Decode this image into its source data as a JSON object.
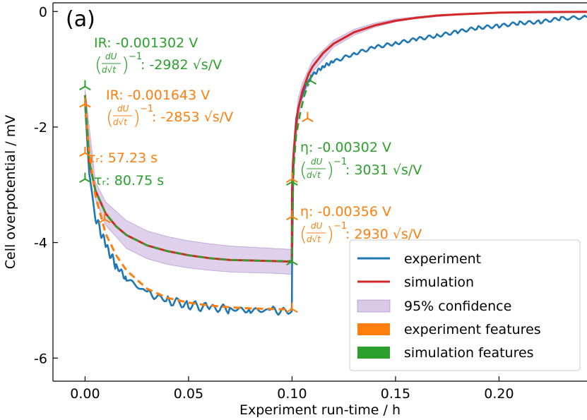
{
  "panel_label": "(a)",
  "colors": {
    "experiment": "#1f77b4",
    "simulation": "#d62728",
    "confidence": "#9467bd",
    "exp_features": "#ff7f0e",
    "sim_features": "#2ca02c"
  },
  "annotations": {
    "sim_ir": "IR: -0.001302 V",
    "sim_ir_slope": ": -2982 √s/V",
    "exp_ir": "IR: -0.001643 V",
    "exp_ir_slope": ": -2853 √s/V",
    "exp_tau": "τᵣ: 57.23 s",
    "sim_tau": "τᵣ: 80.75 s",
    "sim_eta": "η: -0.00302 V",
    "sim_eta_slope": ": 3031 √s/V",
    "exp_eta": "η: -0.00356 V",
    "exp_eta_slope": ": 2930 √s/V"
  },
  "chart_data": {
    "type": "line",
    "xlabel": "Experiment run-time  /  h",
    "ylabel": "Cell overpotential  /  mV",
    "xlim": [
      -0.0155,
      0.2425
    ],
    "ylim": [
      -6.4,
      0.15
    ],
    "xticks": [
      0.0,
      0.05,
      0.1,
      0.15,
      0.2
    ],
    "xtick_labels": [
      "0.00",
      "0.05",
      "0.10",
      "0.15",
      "0.20"
    ],
    "yticks": [
      0,
      -2,
      -4,
      -6
    ],
    "ytick_labels": [
      "0",
      "-2",
      "-4",
      "-6"
    ],
    "grid": false,
    "legend_position": "bottom-right",
    "legend": [
      "experiment",
      "simulation",
      "95% confidence",
      "experiment features",
      "simulation features"
    ],
    "series": [
      {
        "name": "experiment",
        "x": [
          0.0,
          0.002,
          0.005,
          0.01,
          0.015,
          0.02,
          0.03,
          0.04,
          0.05,
          0.06,
          0.07,
          0.08,
          0.09,
          0.0999,
          0.1,
          0.1005,
          0.101,
          0.102,
          0.104,
          0.107,
          0.11,
          0.115,
          0.12,
          0.13,
          0.14,
          0.15,
          0.16,
          0.17,
          0.18,
          0.19,
          0.2,
          0.21,
          0.22,
          0.23,
          0.2425
        ],
        "y": [
          -1.6,
          -2.8,
          -3.55,
          -4.05,
          -4.4,
          -4.62,
          -4.88,
          -5.0,
          -5.08,
          -5.13,
          -5.15,
          -5.17,
          -5.18,
          -5.19,
          -4.5,
          -3.0,
          -2.35,
          -1.85,
          -1.55,
          -1.25,
          -1.1,
          -0.95,
          -0.87,
          -0.73,
          -0.62,
          -0.55,
          -0.48,
          -0.42,
          -0.35,
          -0.28,
          -0.25,
          -0.2,
          -0.18,
          -0.12,
          -0.1
        ]
      },
      {
        "name": "simulation",
        "x": [
          0.0,
          0.002,
          0.005,
          0.01,
          0.015,
          0.02,
          0.03,
          0.04,
          0.05,
          0.06,
          0.07,
          0.08,
          0.09,
          0.0999,
          0.1,
          0.1005,
          0.101,
          0.102,
          0.103,
          0.105,
          0.108,
          0.11,
          0.115,
          0.12,
          0.13,
          0.14,
          0.15,
          0.16,
          0.17,
          0.18,
          0.2,
          0.22,
          0.2425
        ],
        "y": [
          -1.45,
          -2.6,
          -3.1,
          -3.5,
          -3.72,
          -3.87,
          -4.05,
          -4.15,
          -4.22,
          -4.27,
          -4.3,
          -4.31,
          -4.32,
          -4.33,
          -3.1,
          -2.6,
          -2.35,
          -1.95,
          -1.68,
          -1.38,
          -1.08,
          -0.95,
          -0.72,
          -0.56,
          -0.36,
          -0.24,
          -0.16,
          -0.11,
          -0.07,
          -0.05,
          -0.02,
          -0.01,
          -0.005
        ]
      },
      {
        "name": "95% confidence",
        "x": [
          0.0,
          0.005,
          0.01,
          0.02,
          0.03,
          0.04,
          0.05,
          0.06,
          0.07,
          0.08,
          0.09,
          0.0999,
          0.1,
          0.101,
          0.103,
          0.105,
          0.11,
          0.12,
          0.13,
          0.14,
          0.15,
          0.16,
          0.18,
          0.2,
          0.22,
          0.2425
        ],
        "y_low": [
          -1.55,
          -3.25,
          -3.7,
          -4.1,
          -4.28,
          -4.38,
          -4.44,
          -4.48,
          -4.51,
          -4.52,
          -4.53,
          -4.55,
          -3.4,
          -2.55,
          -1.85,
          -1.52,
          -1.05,
          -0.62,
          -0.41,
          -0.27,
          -0.18,
          -0.12,
          -0.06,
          -0.03,
          -0.015,
          -0.008
        ],
        "y_high": [
          -1.35,
          -2.95,
          -3.3,
          -3.62,
          -3.8,
          -3.9,
          -3.97,
          -4.02,
          -4.06,
          -4.08,
          -4.1,
          -4.12,
          -2.8,
          -2.15,
          -1.5,
          -1.24,
          -0.84,
          -0.5,
          -0.31,
          -0.2,
          -0.13,
          -0.09,
          -0.04,
          -0.02,
          -0.01,
          -0.004
        ]
      },
      {
        "name": "experiment features",
        "x": [
          0.0,
          0.002,
          0.005,
          0.01,
          0.015,
          0.02,
          0.03,
          0.04,
          0.05,
          0.06,
          0.07,
          0.08,
          0.09,
          0.1
        ],
        "y": [
          -1.55,
          -2.45,
          -3.2,
          -3.85,
          -4.22,
          -4.48,
          -4.8,
          -4.96,
          -5.04,
          -5.09,
          -5.12,
          -5.14,
          -5.15,
          -5.16
        ]
      },
      {
        "name": "simulation features",
        "x": [
          0.0,
          0.002,
          0.005,
          0.01,
          0.015,
          0.02,
          0.03,
          0.04,
          0.05,
          0.06,
          0.07,
          0.08,
          0.09,
          0.1,
          0.1005,
          0.101,
          0.102,
          0.104,
          0.106,
          0.108
        ],
        "y": [
          -1.45,
          -2.6,
          -3.1,
          -3.5,
          -3.72,
          -3.87,
          -4.05,
          -4.15,
          -4.22,
          -4.27,
          -4.3,
          -4.31,
          -4.32,
          -4.32,
          -3.05,
          -2.6,
          -2.15,
          -1.75,
          -1.45,
          -1.25
        ]
      }
    ],
    "feature_markers": {
      "simulation": [
        {
          "x": 0.0,
          "y": -1.3
        },
        {
          "x": 0.0,
          "y": -2.9
        },
        {
          "x": 0.1,
          "y": -4.33
        },
        {
          "x": 0.1,
          "y": -2.95
        },
        {
          "x": 0.109,
          "y": -1.2
        }
      ],
      "experiment": [
        {
          "x": 0.0,
          "y": -1.6
        },
        {
          "x": 0.0,
          "y": -2.45
        },
        {
          "x": 0.0095,
          "y": -3.6
        },
        {
          "x": 0.1,
          "y": -5.15
        },
        {
          "x": 0.1,
          "y": -3.55
        },
        {
          "x": 0.1,
          "y": -2.9
        },
        {
          "x": 0.1075,
          "y": -1.85
        }
      ]
    }
  }
}
